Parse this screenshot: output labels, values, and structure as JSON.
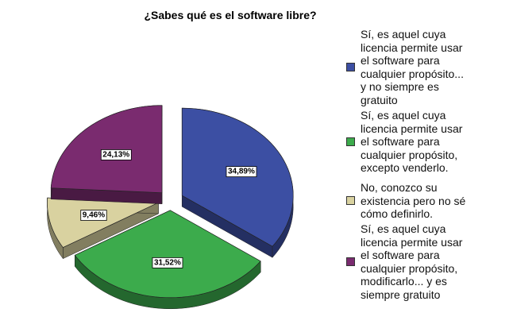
{
  "chart_data": {
    "type": "pie",
    "title": "¿Sabes qué es el software libre?",
    "categories": [
      "Sí, es aquel cuya licencia permite usar el software para cualquier propósito... y no siempre es gratuito",
      "Sí, es aquel cuya licencia permite usar el software para cualquier propósito, excepto venderlo.",
      "No, conozco su existencia pero no sé cómo definirlo.",
      "Sí, es aquel cuya licencia permite usar el software para cualquier propósito, modificarlo... y es siempre gratuito"
    ],
    "values": [
      34.89,
      31.52,
      9.46,
      24.13
    ],
    "value_labels": [
      "34,89%",
      "31,52%",
      "9,46%",
      "24,13%"
    ],
    "colors": [
      "#3c4fa3",
      "#3cab4c",
      "#d9d2a0",
      "#7a2b6f"
    ],
    "legend": "right"
  }
}
